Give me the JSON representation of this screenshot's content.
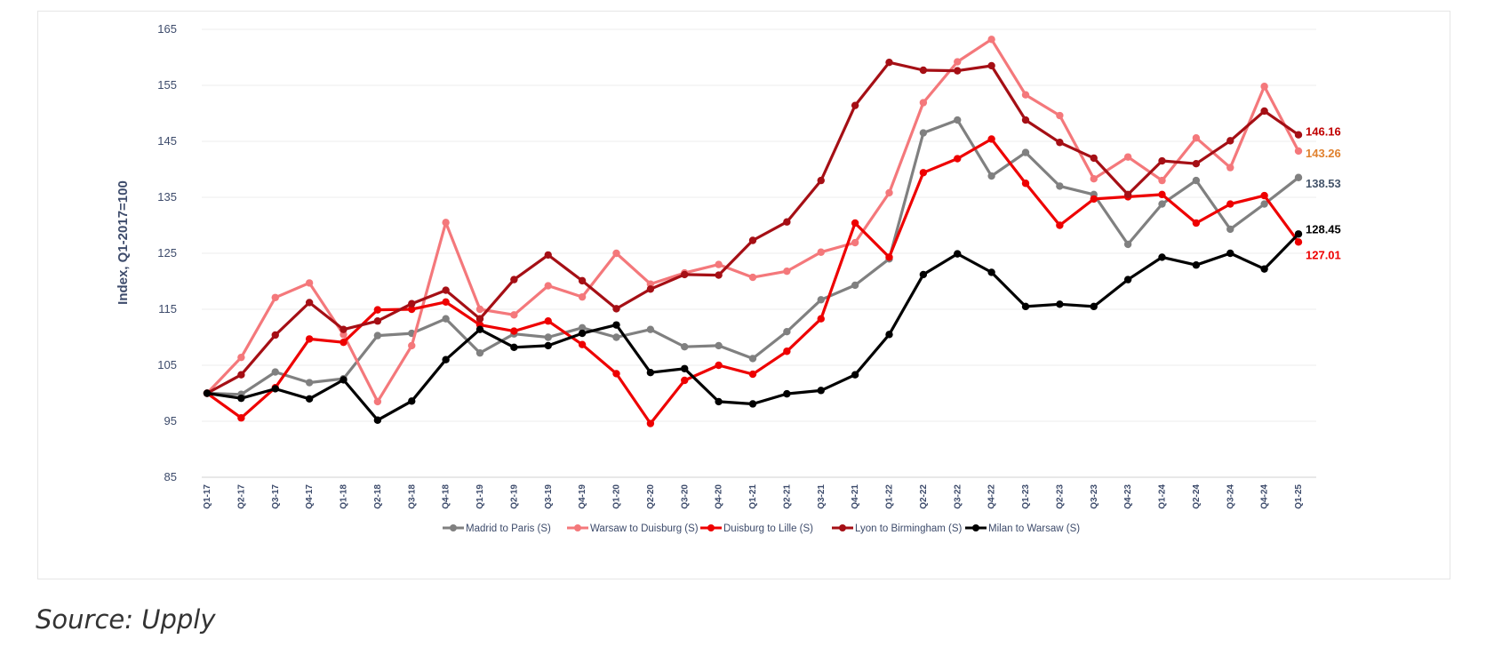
{
  "chart_data": {
    "type": "line",
    "ylabel": "Index, Q1-2017=100",
    "ylim": [
      85,
      165
    ],
    "yticks": [
      85,
      95,
      105,
      115,
      125,
      135,
      145,
      155,
      165
    ],
    "grid": true,
    "legend_position": "bottom",
    "categories": [
      "Q1-17",
      "Q2-17",
      "Q3-17",
      "Q4-17",
      "Q1-18",
      "Q2-18",
      "Q3-18",
      "Q4-18",
      "Q1-19",
      "Q2-19",
      "Q3-19",
      "Q4-19",
      "Q1-20",
      "Q2-20",
      "Q3-20",
      "Q4-20",
      "Q1-21",
      "Q2-21",
      "Q3-21",
      "Q4-21",
      "Q1-22",
      "Q2-22",
      "Q3-22",
      "Q4-22",
      "Q1-23",
      "Q2-23",
      "Q3-23",
      "Q4-23",
      "Q1-24",
      "Q2-24",
      "Q3-24",
      "Q4-24",
      "Q1-25"
    ],
    "series": [
      {
        "name": "Madrid to Paris (S)",
        "color": "#808080",
        "end_label": "138.53",
        "end_label_color": "#44546a",
        "values": [
          100.0,
          99.8,
          103.8,
          101.9,
          102.6,
          110.3,
          110.7,
          113.3,
          107.2,
          110.6,
          110.0,
          111.7,
          110.0,
          111.4,
          108.3,
          108.5,
          106.2,
          111.0,
          116.7,
          119.3,
          124.0,
          146.5,
          148.8,
          138.8,
          143.0,
          137.0,
          135.5,
          126.6,
          133.8,
          138.0,
          129.3,
          133.8,
          138.53
        ]
      },
      {
        "name": "Warsaw to Duisburg (S)",
        "color": "#f4787b",
        "end_label": "143.26",
        "end_label_color": "#e0812e",
        "values": [
          100.0,
          106.4,
          117.1,
          119.7,
          110.5,
          98.5,
          108.5,
          130.5,
          115.0,
          114.0,
          119.2,
          117.2,
          125.0,
          119.5,
          121.5,
          123.0,
          120.7,
          121.8,
          125.2,
          126.9,
          135.8,
          151.9,
          159.2,
          163.2,
          153.3,
          149.6,
          138.3,
          142.2,
          138.0,
          145.6,
          140.3,
          154.8,
          143.26
        ]
      },
      {
        "name": "Duisburg to Lille (S)",
        "color": "#ee0000",
        "end_label": "127.01",
        "end_label_color": "#ee0000",
        "values": [
          100.0,
          95.6,
          101.0,
          109.7,
          109.1,
          114.9,
          115.0,
          116.3,
          112.2,
          111.1,
          112.9,
          108.7,
          103.5,
          94.6,
          102.3,
          105.0,
          103.4,
          107.5,
          113.3,
          130.4,
          124.3,
          139.4,
          141.9,
          145.4,
          137.5,
          130.0,
          134.7,
          135.1,
          135.5,
          130.4,
          133.8,
          135.3,
          127.01
        ]
      },
      {
        "name": "Lyon to Birmingham (S)",
        "color": "#a50f15",
        "end_label": "146.16",
        "end_label_color": "#c00000",
        "values": [
          100.0,
          103.3,
          110.4,
          116.2,
          111.4,
          112.9,
          116.0,
          118.4,
          113.3,
          120.3,
          124.7,
          120.1,
          115.1,
          118.6,
          121.2,
          121.1,
          127.3,
          130.6,
          138.0,
          151.4,
          159.1,
          157.7,
          157.6,
          158.5,
          148.8,
          144.8,
          142.0,
          135.5,
          141.5,
          141.0,
          145.1,
          150.4,
          146.16
        ]
      },
      {
        "name": "Milan to Warsaw (S)",
        "color": "#000000",
        "end_label": "128.45",
        "end_label_color": "#000000",
        "values": [
          100.0,
          99.1,
          100.8,
          99.0,
          102.4,
          95.2,
          98.6,
          106.0,
          111.4,
          108.2,
          108.5,
          110.7,
          112.2,
          103.7,
          104.4,
          98.5,
          98.1,
          99.9,
          100.5,
          103.3,
          110.5,
          121.2,
          124.9,
          121.6,
          115.5,
          115.9,
          115.5,
          120.3,
          124.3,
          122.9,
          125.0,
          122.2,
          128.45
        ]
      }
    ]
  },
  "source": "Source: Upply"
}
